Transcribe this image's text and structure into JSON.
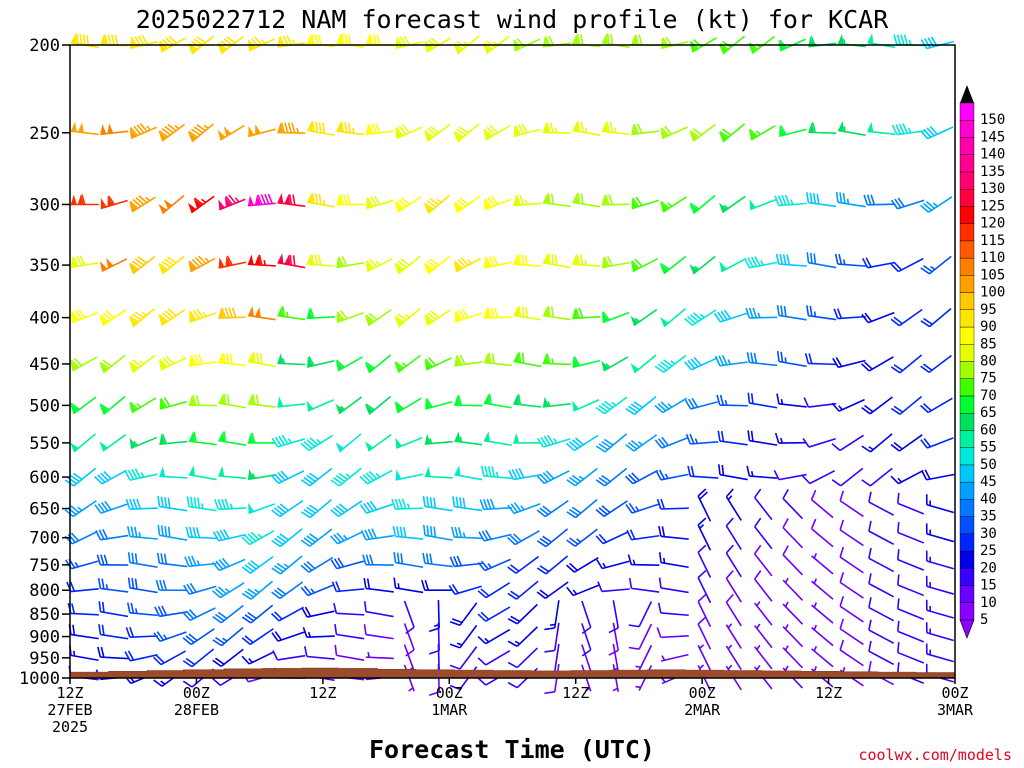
{
  "title": "2025022712 NAM forecast wind profile (kt) for KCAR",
  "credit": "coolwx.com/models",
  "chart_data": {
    "type": "wind-barb-profile",
    "title": "2025022712 NAM forecast wind profile (kt) for KCAR",
    "xlabel": "Forecast Time (UTC)",
    "ylabel": "",
    "ylim": [
      1000,
      200
    ],
    "y_scale": "log-pressure",
    "y_ticks": [
      "200",
      "250",
      "300",
      "350",
      "400",
      "450",
      "500",
      "550",
      "600",
      "650",
      "700",
      "750",
      "800",
      "850",
      "900",
      "950",
      "1000"
    ],
    "x_ticks": [
      {
        "hour": 0,
        "lines": [
          "12Z",
          "27FEB",
          "2025"
        ]
      },
      {
        "hour": 12,
        "lines": [
          "00Z",
          "28FEB"
        ]
      },
      {
        "hour": 24,
        "lines": [
          "12Z"
        ]
      },
      {
        "hour": 36,
        "lines": [
          "00Z",
          "1MAR"
        ]
      },
      {
        "hour": 48,
        "lines": [
          "12Z"
        ]
      },
      {
        "hour": 60,
        "lines": [
          "00Z",
          "2MAR"
        ]
      },
      {
        "hour": 72,
        "lines": [
          "12Z"
        ]
      },
      {
        "hour": 84,
        "lines": [
          "00Z",
          "3MAR"
        ]
      }
    ],
    "colorbar": {
      "unit": "kt",
      "labels": [
        "5",
        "10",
        "15",
        "20",
        "25",
        "30",
        "35",
        "40",
        "45",
        "50",
        "55",
        "60",
        "65",
        "70",
        "75",
        "80",
        "85",
        "90",
        "95",
        "100",
        "105",
        "110",
        "115",
        "120",
        "125",
        "130",
        "135",
        "140",
        "145",
        "150"
      ],
      "colors": [
        "#8b00ff",
        "#6a00ff",
        "#3800ff",
        "#0000e6",
        "#0025ff",
        "#0050ff",
        "#0078ff",
        "#00a0ff",
        "#00c8ff",
        "#00e8d8",
        "#00f0a0",
        "#00e060",
        "#00ff30",
        "#40ff00",
        "#a0ff00",
        "#e6ff00",
        "#ffff00",
        "#ffe600",
        "#ffc800",
        "#ffa000",
        "#ff8000",
        "#ff5a00",
        "#ff3000",
        "#ff0000",
        "#ff0040",
        "#ff0070",
        "#ff0090",
        "#ff00b0",
        "#ff00d0",
        "#ff00ff"
      ]
    },
    "terrain_pressure_hpa": [
      985,
      983,
      981,
      979,
      977,
      976,
      975,
      976,
      978,
      979,
      980,
      981,
      982,
      981,
      980,
      979,
      980,
      981,
      982,
      983,
      984,
      985,
      986
    ],
    "levels_hpa": [
      1000,
      950,
      900,
      850,
      800,
      750,
      700,
      650,
      600,
      550,
      500,
      450,
      400,
      350,
      300,
      250,
      200
    ],
    "note": "speed (kt) rows per level; first row 200 hPa, last row 1000 hPa; 30 columns every 3 h"
  },
  "wind_speed_kt": {
    "200": [
      88,
      88,
      88,
      88,
      88,
      88,
      85,
      85,
      82,
      82,
      80,
      78,
      78,
      75,
      75,
      72,
      72,
      72,
      70,
      70,
      70,
      68,
      68,
      65,
      60,
      58,
      55,
      50,
      45,
      42
    ],
    "250": [
      98,
      100,
      95,
      95,
      95,
      98,
      98,
      95,
      88,
      85,
      80,
      78,
      78,
      78,
      78,
      78,
      75,
      75,
      75,
      72,
      70,
      70,
      68,
      65,
      62,
      58,
      55,
      50,
      45,
      40
    ],
    "300": [
      110,
      112,
      95,
      100,
      115,
      125,
      140,
      120,
      85,
      80,
      78,
      82,
      85,
      82,
      80,
      75,
      72,
      70,
      70,
      68,
      65,
      60,
      55,
      50,
      45,
      40,
      35,
      30,
      32,
      35
    ],
    "350": [
      78,
      100,
      90,
      88,
      95,
      110,
      115,
      120,
      78,
      70,
      75,
      78,
      82,
      85,
      82,
      80,
      78,
      75,
      72,
      68,
      62,
      55,
      50,
      45,
      40,
      30,
      25,
      20,
      22,
      25
    ],
    "400": [
      80,
      82,
      85,
      88,
      85,
      90,
      100,
      65,
      62,
      70,
      72,
      75,
      78,
      80,
      80,
      78,
      72,
      68,
      62,
      55,
      50,
      45,
      40,
      35,
      30,
      25,
      20,
      18,
      20,
      22
    ],
    "450": [
      70,
      72,
      75,
      78,
      80,
      82,
      78,
      55,
      58,
      60,
      62,
      65,
      68,
      70,
      70,
      68,
      65,
      60,
      55,
      50,
      45,
      40,
      35,
      30,
      25,
      20,
      18,
      18,
      20,
      22
    ],
    "500": [
      60,
      62,
      65,
      68,
      70,
      72,
      70,
      50,
      52,
      55,
      58,
      60,
      62,
      62,
      60,
      58,
      55,
      50,
      45,
      40,
      35,
      30,
      25,
      20,
      15,
      12,
      15,
      18,
      20,
      22
    ],
    "550": [
      50,
      52,
      55,
      58,
      60,
      62,
      62,
      45,
      45,
      48,
      50,
      52,
      55,
      55,
      52,
      50,
      45,
      42,
      38,
      35,
      30,
      25,
      20,
      18,
      15,
      12,
      12,
      15,
      18,
      20
    ],
    "600": [
      40,
      42,
      45,
      48,
      50,
      52,
      55,
      40,
      42,
      45,
      45,
      48,
      50,
      48,
      45,
      42,
      38,
      35,
      30,
      28,
      25,
      20,
      18,
      15,
      12,
      10,
      10,
      12,
      15,
      18
    ],
    "650": [
      35,
      38,
      40,
      42,
      45,
      45,
      48,
      42,
      40,
      40,
      42,
      45,
      42,
      40,
      38,
      35,
      32,
      30,
      28,
      25,
      22,
      18,
      15,
      12,
      10,
      8,
      8,
      10,
      12,
      15
    ],
    "700": [
      30,
      32,
      35,
      38,
      40,
      42,
      45,
      40,
      38,
      35,
      38,
      40,
      38,
      35,
      32,
      30,
      28,
      25,
      22,
      20,
      18,
      15,
      12,
      10,
      8,
      8,
      8,
      10,
      12,
      15
    ],
    "750": [
      25,
      28,
      30,
      32,
      35,
      38,
      40,
      35,
      30,
      28,
      30,
      32,
      30,
      28,
      25,
      22,
      20,
      18,
      15,
      15,
      15,
      12,
      10,
      8,
      8,
      6,
      8,
      10,
      12,
      14
    ],
    "800": [
      22,
      25,
      28,
      30,
      32,
      35,
      35,
      30,
      25,
      20,
      18,
      15,
      18,
      20,
      22,
      20,
      18,
      15,
      12,
      12,
      12,
      10,
      8,
      8,
      6,
      6,
      8,
      10,
      12,
      14
    ],
    "850": [
      20,
      22,
      25,
      28,
      30,
      30,
      28,
      22,
      18,
      12,
      10,
      10,
      15,
      18,
      20,
      18,
      15,
      12,
      10,
      10,
      10,
      8,
      8,
      6,
      6,
      5,
      8,
      10,
      12,
      14
    ],
    "900": [
      18,
      20,
      22,
      25,
      28,
      25,
      22,
      18,
      15,
      10,
      8,
      8,
      12,
      15,
      15,
      15,
      12,
      10,
      8,
      8,
      8,
      8,
      6,
      6,
      5,
      5,
      8,
      10,
      12,
      14
    ],
    "950": [
      15,
      18,
      20,
      22,
      22,
      18,
      15,
      12,
      10,
      8,
      6,
      6,
      10,
      12,
      12,
      12,
      10,
      8,
      6,
      6,
      6,
      6,
      5,
      5,
      5,
      5,
      8,
      10,
      12,
      14
    ],
    "1000": [
      12,
      15,
      15,
      15,
      12,
      10,
      8,
      8,
      6,
      5,
      5,
      5,
      8,
      10,
      10,
      10,
      8,
      6,
      5,
      5,
      5,
      5,
      5,
      5,
      5,
      5,
      6,
      8,
      10,
      12
    ]
  }
}
